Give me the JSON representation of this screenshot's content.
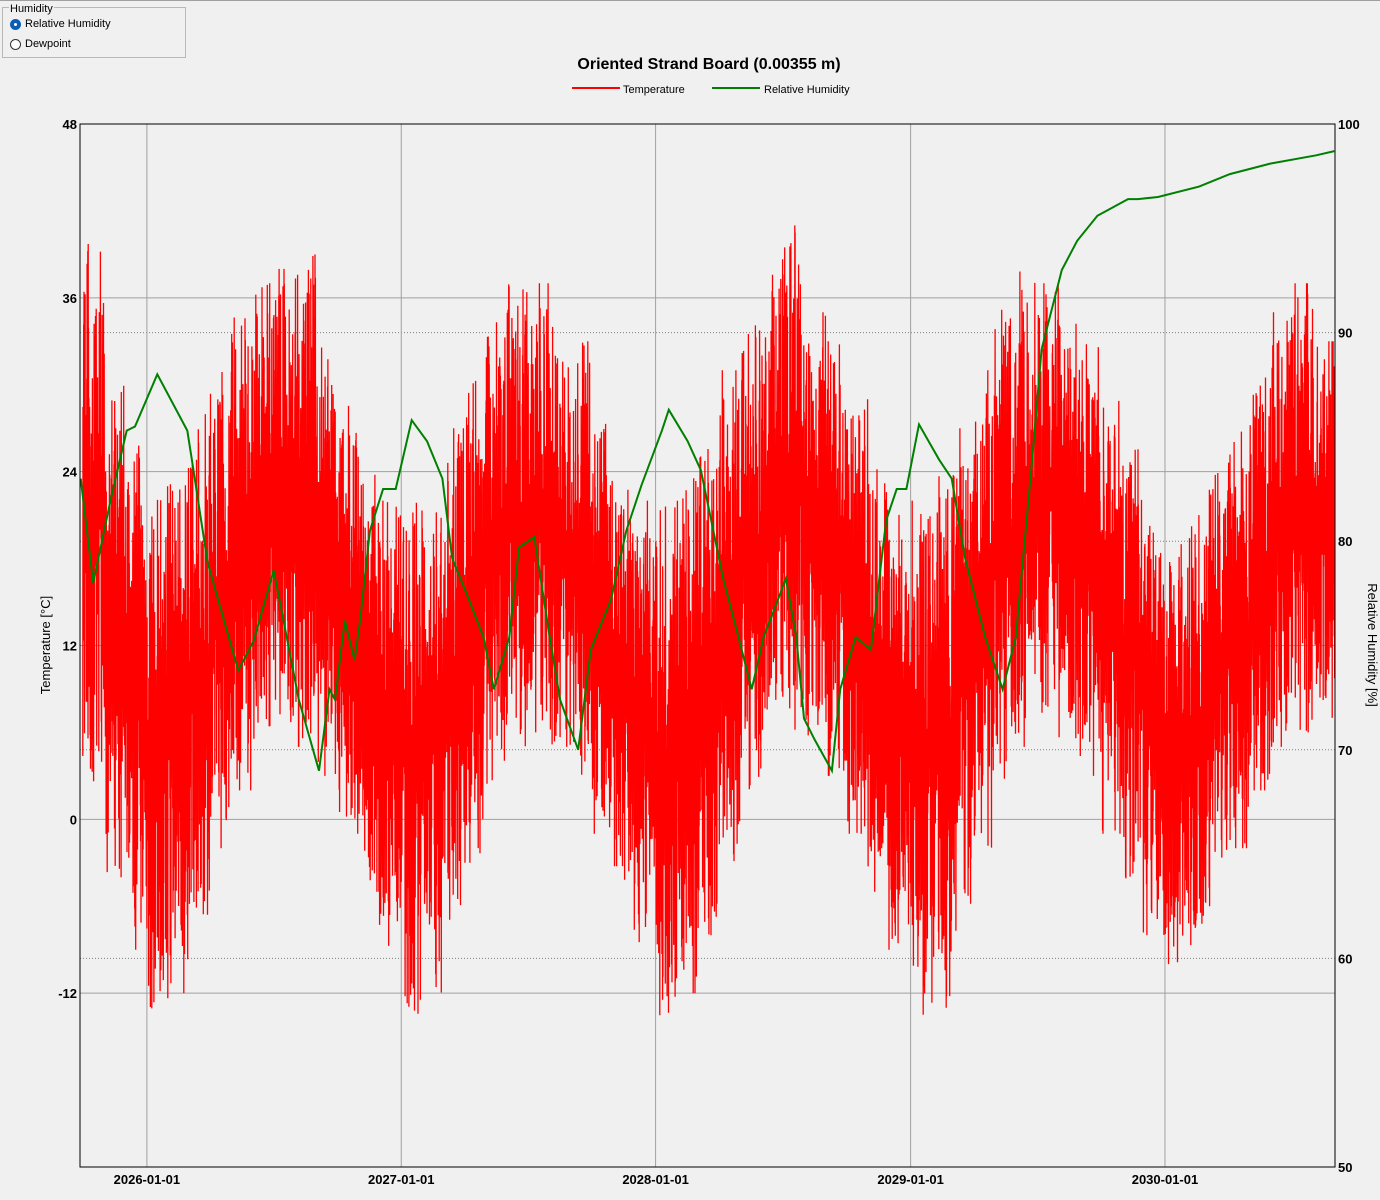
{
  "humidity_group": {
    "title": "Humidity",
    "options": [
      {
        "label": "Relative Humidity",
        "selected": true
      },
      {
        "label": "Dewpoint",
        "selected": false
      }
    ]
  },
  "chart_data": {
    "type": "line",
    "title": "Oriented Strand Board (0.00355 m)",
    "legend_position": "top-center",
    "ylabel_left": "Temperature [°C]",
    "ylabel_right": "Relative Humidity [%]",
    "ylim_left": [
      -24,
      48
    ],
    "ylim_right": [
      50,
      100
    ],
    "yticks_left": [
      "48",
      "36",
      "24",
      "12",
      "0",
      "-12"
    ],
    "yticks_right": [
      "100",
      "90",
      "80",
      "70",
      "60",
      "50"
    ],
    "xlim": [
      "2025-09-27",
      "2030-09-02"
    ],
    "xticks": [
      "2026-01-01",
      "2027-01-01",
      "2028-01-01",
      "2029-01-01",
      "2030-01-01"
    ],
    "grid": true,
    "colors": {
      "temperature": "#ff0000",
      "humidity": "#008000",
      "grid": "#a0a0a0"
    },
    "series": [
      {
        "name": "Temperature",
        "axis": "left",
        "note_monthly_range": true,
        "points": [
          [
            "2025-10",
            2,
            41
          ],
          [
            "2025-11",
            -4,
            30
          ],
          [
            "2025-12",
            -9,
            26
          ],
          [
            "2026-01",
            -14,
            23
          ],
          [
            "2026-02",
            -12,
            24
          ],
          [
            "2026-03",
            -8,
            28
          ],
          [
            "2026-04",
            -2,
            31
          ],
          [
            "2026-05",
            2,
            35
          ],
          [
            "2026-06",
            5,
            37
          ],
          [
            "2026-07",
            6,
            38
          ],
          [
            "2026-08",
            5,
            39
          ],
          [
            "2026-09",
            3,
            33
          ],
          [
            "2026-10",
            -1,
            29
          ],
          [
            "2026-11",
            -5,
            25
          ],
          [
            "2026-12",
            -9,
            22
          ],
          [
            "2027-01",
            -14,
            22
          ],
          [
            "2027-02",
            -12,
            24
          ],
          [
            "2027-03",
            -8,
            27
          ],
          [
            "2027-04",
            -3,
            31
          ],
          [
            "2027-05",
            2,
            35
          ],
          [
            "2027-06",
            5,
            38
          ],
          [
            "2027-07",
            6,
            37
          ],
          [
            "2027-08",
            5,
            34
          ],
          [
            "2027-09",
            3,
            33
          ],
          [
            "2027-10",
            -1,
            29
          ],
          [
            "2027-11",
            -5,
            25
          ],
          [
            "2027-12",
            -9,
            22
          ],
          [
            "2028-01",
            -14,
            22
          ],
          [
            "2028-02",
            -12,
            24
          ],
          [
            "2028-03",
            -8,
            27
          ],
          [
            "2028-04",
            -3,
            31
          ],
          [
            "2028-05",
            2,
            35
          ],
          [
            "2028-06",
            5,
            38
          ],
          [
            "2028-07",
            6,
            41
          ],
          [
            "2028-08",
            5,
            35
          ],
          [
            "2028-09",
            3,
            33
          ],
          [
            "2028-10",
            -1,
            29
          ],
          [
            "2028-11",
            -5,
            25
          ],
          [
            "2028-12",
            -9,
            22
          ],
          [
            "2029-01",
            -14,
            22
          ],
          [
            "2029-02",
            -13,
            24
          ],
          [
            "2029-03",
            -8,
            27
          ],
          [
            "2029-04",
            -3,
            31
          ],
          [
            "2029-05",
            2,
            36
          ],
          [
            "2029-06",
            5,
            38
          ],
          [
            "2029-07",
            6,
            37
          ],
          [
            "2029-08",
            5,
            35
          ],
          [
            "2029-09",
            3,
            33
          ],
          [
            "2029-10",
            -1,
            29
          ],
          [
            "2029-11",
            -5,
            26
          ],
          [
            "2029-12",
            -8,
            21
          ],
          [
            "2030-01",
            -10,
            19
          ],
          [
            "2030-02",
            -9,
            21
          ],
          [
            "2030-03",
            -6,
            24
          ],
          [
            "2030-04",
            -2,
            27
          ],
          [
            "2030-05",
            2,
            31
          ],
          [
            "2030-06",
            5,
            35
          ],
          [
            "2030-07",
            6,
            37
          ],
          [
            "2030-08",
            7,
            33
          ]
        ]
      },
      {
        "name": "Relative Humidity",
        "axis": "right",
        "points": [
          [
            "2025-09-28",
            83
          ],
          [
            "2025-10-16",
            78
          ],
          [
            "2025-11-10",
            82
          ],
          [
            "2025-12-03",
            85.3
          ],
          [
            "2025-12-15",
            85.5
          ],
          [
            "2026-01-16",
            88
          ],
          [
            "2026-02-28",
            85.3
          ],
          [
            "2026-03-07",
            83.8
          ],
          [
            "2026-03-29",
            79
          ],
          [
            "2026-05-12",
            73.8
          ],
          [
            "2026-06-03",
            75.2
          ],
          [
            "2026-07-02",
            78.6
          ],
          [
            "2026-07-16",
            76.2
          ],
          [
            "2026-08-07",
            72.4
          ],
          [
            "2026-09-05",
            69
          ],
          [
            "2026-09-20",
            72.9
          ],
          [
            "2026-09-28",
            72.4
          ],
          [
            "2026-10-12",
            76.2
          ],
          [
            "2026-10-26",
            74.3
          ],
          [
            "2026-11-03",
            76.2
          ],
          [
            "2026-11-17",
            80.5
          ],
          [
            "2026-12-06",
            82.5
          ],
          [
            "2026-12-24",
            82.5
          ],
          [
            "2027-01-16",
            85.8
          ],
          [
            "2027-02-07",
            84.8
          ],
          [
            "2027-03-01",
            83
          ],
          [
            "2027-03-15",
            79.2
          ],
          [
            "2027-04-07",
            77.3
          ],
          [
            "2027-04-29",
            75.4
          ],
          [
            "2027-05-14",
            72.9
          ],
          [
            "2027-06-05",
            75.4
          ],
          [
            "2027-06-19",
            79.7
          ],
          [
            "2027-07-11",
            80.2
          ],
          [
            "2027-08-02",
            75.4
          ],
          [
            "2027-08-17",
            72.4
          ],
          [
            "2027-09-12",
            70
          ],
          [
            "2027-09-30",
            74.8
          ],
          [
            "2027-10-29",
            77.2
          ],
          [
            "2027-11-20",
            80.5
          ],
          [
            "2027-12-12",
            82.7
          ],
          [
            "2028-01-10",
            85.3
          ],
          [
            "2028-01-20",
            86.3
          ],
          [
            "2028-02-16",
            84.8
          ],
          [
            "2028-03-06",
            83.4
          ],
          [
            "2028-04-07",
            78.2
          ],
          [
            "2028-04-29",
            75.4
          ],
          [
            "2028-05-18",
            72.9
          ],
          [
            "2028-06-04",
            75.4
          ],
          [
            "2028-07-06",
            78.2
          ],
          [
            "2028-07-21",
            75.4
          ],
          [
            "2028-08-01",
            71.5
          ],
          [
            "2028-08-16",
            70.5
          ],
          [
            "2028-09-10",
            69
          ],
          [
            "2028-09-22",
            72.9
          ],
          [
            "2028-10-14",
            75.4
          ],
          [
            "2028-11-05",
            74.8
          ],
          [
            "2028-11-27",
            81
          ],
          [
            "2028-12-12",
            82.5
          ],
          [
            "2028-12-26",
            82.5
          ],
          [
            "2029-01-13",
            85.6
          ],
          [
            "2029-02-11",
            83.9
          ],
          [
            "2029-03-01",
            83
          ],
          [
            "2029-03-20",
            79.2
          ],
          [
            "2029-04-18",
            75.4
          ],
          [
            "2029-05-13",
            72.9
          ],
          [
            "2029-06-01",
            75.4
          ],
          [
            "2029-06-23",
            83.4
          ],
          [
            "2029-07-08",
            89.2
          ],
          [
            "2029-08-06",
            93
          ],
          [
            "2029-08-28",
            94.4
          ],
          [
            "2029-09-26",
            95.6
          ],
          [
            "2029-11-09",
            96.4
          ],
          [
            "2029-11-23",
            96.4
          ],
          [
            "2029-12-22",
            96.5
          ],
          [
            "2030-02-19",
            97
          ],
          [
            "2030-04-04",
            97.6
          ],
          [
            "2030-06-01",
            98.1
          ],
          [
            "2030-08-06",
            98.5
          ],
          [
            "2030-09-01",
            98.7
          ]
        ]
      }
    ]
  }
}
